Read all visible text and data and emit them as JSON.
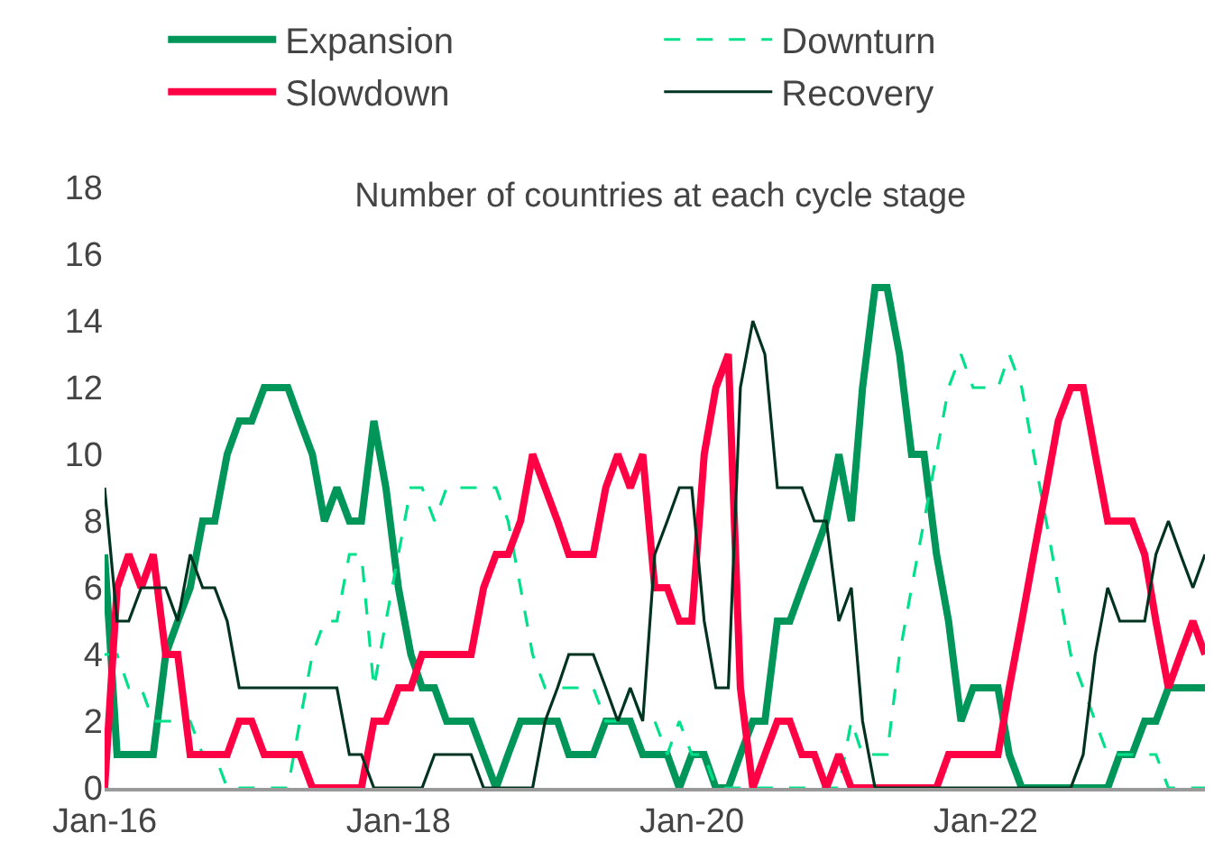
{
  "chart_data": {
    "type": "line",
    "title": "Number of countries at each cycle stage",
    "x": [
      "2016-01",
      "2016-02",
      "2016-03",
      "2016-04",
      "2016-05",
      "2016-06",
      "2016-07",
      "2016-08",
      "2016-09",
      "2016-10",
      "2016-11",
      "2016-12",
      "2017-01",
      "2017-02",
      "2017-03",
      "2017-04",
      "2017-05",
      "2017-06",
      "2017-07",
      "2017-08",
      "2017-09",
      "2017-10",
      "2017-11",
      "2017-12",
      "2018-01",
      "2018-02",
      "2018-03",
      "2018-04",
      "2018-05",
      "2018-06",
      "2018-07",
      "2018-08",
      "2018-09",
      "2018-10",
      "2018-11",
      "2018-12",
      "2019-01",
      "2019-02",
      "2019-03",
      "2019-04",
      "2019-05",
      "2019-06",
      "2019-07",
      "2019-08",
      "2019-09",
      "2019-10",
      "2019-11",
      "2019-12",
      "2020-01",
      "2020-02",
      "2020-03",
      "2020-04",
      "2020-05",
      "2020-06",
      "2020-07",
      "2020-08",
      "2020-09",
      "2020-10",
      "2020-11",
      "2020-12",
      "2021-01",
      "2021-02",
      "2021-03",
      "2021-04",
      "2021-05",
      "2021-06",
      "2021-07",
      "2021-08",
      "2021-09",
      "2021-10",
      "2021-11",
      "2021-12",
      "2022-01",
      "2022-02",
      "2022-03",
      "2022-04",
      "2022-05",
      "2022-06",
      "2022-07",
      "2022-08",
      "2022-09",
      "2022-10",
      "2022-11",
      "2022-12",
      "2023-01",
      "2023-02",
      "2023-03",
      "2023-04",
      "2023-05",
      "2023-06",
      "2023-07"
    ],
    "series": [
      {
        "name": "Expansion",
        "color": "#00965a",
        "line_style": "solid",
        "values": [
          7,
          1,
          1,
          1,
          1,
          4,
          5,
          6,
          8,
          8,
          10,
          11,
          11,
          12,
          12,
          12,
          11,
          10,
          8,
          9,
          8,
          8,
          11,
          9,
          6,
          4,
          3,
          3,
          2,
          2,
          2,
          1,
          0,
          1,
          2,
          2,
          2,
          2,
          1,
          1,
          1,
          2,
          2,
          2,
          1,
          1,
          1,
          0,
          1,
          1,
          0,
          0,
          1,
          2,
          2,
          5,
          5,
          6,
          7,
          8,
          10,
          8,
          12,
          15,
          15,
          13,
          10,
          10,
          7,
          5,
          2,
          3,
          3,
          3,
          1,
          0,
          0,
          0,
          0,
          0,
          0,
          0,
          0,
          1,
          1,
          2,
          2,
          3,
          3,
          3,
          3
        ]
      },
      {
        "name": "Downturn",
        "color": "#00e08a",
        "line_style": "dashed",
        "values": [
          4,
          4,
          3,
          3,
          2,
          2,
          2,
          2,
          1,
          1,
          0,
          0,
          0,
          0,
          0,
          0,
          2,
          4,
          5,
          5,
          7,
          7,
          3,
          5,
          7,
          9,
          9,
          8,
          9,
          9,
          9,
          9,
          9,
          8,
          6,
          4,
          3,
          3,
          3,
          3,
          3,
          2,
          2,
          3,
          2,
          2,
          1,
          2,
          1,
          1,
          0,
          0,
          0,
          0,
          0,
          0,
          0,
          0,
          0,
          0,
          0,
          2,
          1,
          1,
          1,
          4,
          6,
          8,
          10,
          12,
          13,
          12,
          12,
          12,
          13,
          12,
          10,
          8,
          6,
          4,
          3,
          2,
          1,
          1,
          1,
          1,
          1,
          0,
          0,
          0,
          0
        ]
      },
      {
        "name": "Slowdown",
        "color": "#ff0044",
        "line_style": "solid",
        "values": [
          0,
          6,
          7,
          6,
          7,
          4,
          4,
          1,
          1,
          1,
          1,
          2,
          2,
          1,
          1,
          1,
          1,
          0,
          0,
          0,
          0,
          0,
          2,
          2,
          3,
          3,
          4,
          4,
          4,
          4,
          4,
          6,
          7,
          7,
          8,
          10,
          9,
          8,
          7,
          7,
          7,
          9,
          10,
          9,
          10,
          6,
          6,
          5,
          5,
          10,
          12,
          13,
          3,
          0,
          1,
          2,
          2,
          1,
          1,
          0,
          1,
          0,
          0,
          0,
          0,
          0,
          0,
          0,
          0,
          1,
          1,
          1,
          1,
          1,
          3,
          5,
          7,
          9,
          11,
          12,
          12,
          10,
          8,
          8,
          8,
          7,
          5,
          3,
          4,
          5,
          4
        ]
      },
      {
        "name": "Recovery",
        "color": "#00331f",
        "line_style": "solid",
        "values": [
          9,
          5,
          5,
          6,
          6,
          6,
          5,
          7,
          6,
          6,
          5,
          3,
          3,
          3,
          3,
          3,
          3,
          3,
          3,
          3,
          1,
          1,
          0,
          0,
          0,
          0,
          0,
          1,
          1,
          1,
          1,
          0,
          0,
          0,
          0,
          0,
          2,
          3,
          4,
          4,
          4,
          3,
          2,
          3,
          2,
          7,
          8,
          9,
          9,
          5,
          3,
          3,
          12,
          14,
          13,
          9,
          9,
          9,
          8,
          8,
          5,
          6,
          2,
          0,
          0,
          0,
          0,
          0,
          0,
          0,
          0,
          0,
          0,
          0,
          0,
          0,
          0,
          0,
          0,
          0,
          1,
          4,
          6,
          5,
          5,
          5,
          7,
          8,
          7,
          6,
          7
        ]
      }
    ],
    "xlim": [
      "2016-01",
      "2023-07"
    ],
    "xticks": [
      {
        "value": "2016-01",
        "label": "Jan-16"
      },
      {
        "value": "2018-01",
        "label": "Jan-18"
      },
      {
        "value": "2020-01",
        "label": "Jan-20"
      },
      {
        "value": "2022-01",
        "label": "Jan-22"
      }
    ],
    "ylim": [
      0,
      18
    ],
    "yticks": [
      0,
      2,
      4,
      6,
      8,
      10,
      12,
      14,
      16,
      18
    ],
    "grid": false,
    "legend": "top"
  }
}
